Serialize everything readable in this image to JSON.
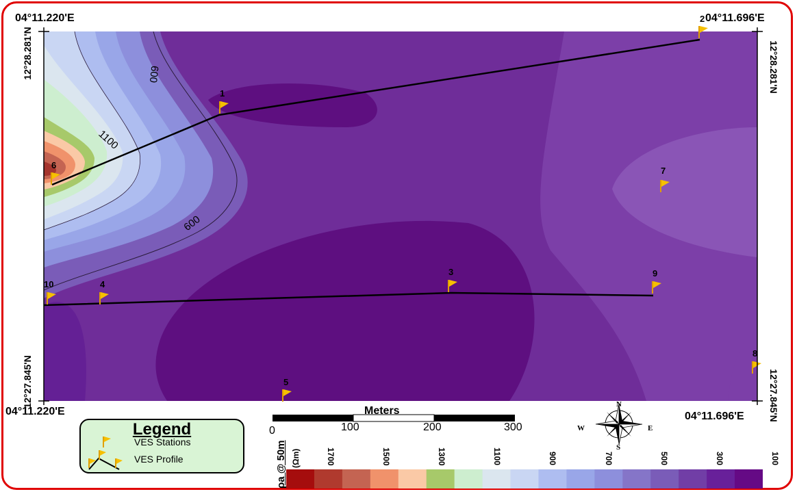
{
  "coords": {
    "top_left": "04°11.220'E",
    "top_right": "04°11.696'E",
    "bottom_left": "04°11.220'E",
    "bottom_right": "04°11.696'E",
    "left_top": "12°28.281'N",
    "left_bottom": "12°27.845'N",
    "right_top": "12°28.281'N",
    "right_bottom": "12°27.845'N"
  },
  "stations": [
    {
      "label": "1"
    },
    {
      "label": "2"
    },
    {
      "label": "3"
    },
    {
      "label": "4"
    },
    {
      "label": "5"
    },
    {
      "label": "6"
    },
    {
      "label": "7"
    },
    {
      "label": "8"
    },
    {
      "label": "9"
    },
    {
      "label": "10"
    }
  ],
  "contour_labels": [
    "600",
    "1100",
    "600"
  ],
  "legend": {
    "title": "Legend",
    "items": [
      "VES Stations",
      "VES Profile"
    ]
  },
  "scale": {
    "title": "Meters",
    "ticks": [
      "0",
      "100",
      "200",
      "300"
    ]
  },
  "north_arrow": {
    "n": "N",
    "s": "S",
    "e": "E",
    "w": "W"
  },
  "colorbar": {
    "rho_label": "ρa @ 50m",
    "unit": "(Ωm)",
    "labels": [
      "1700",
      "1500",
      "1300",
      "1100",
      "900",
      "700",
      "500",
      "300",
      "100"
    ],
    "colors": [
      "#a50d0d",
      "#b03a2e",
      "#c46452",
      "#f0926b",
      "#fac9a6",
      "#a7c96a",
      "#cdeecf",
      "#dbe6ef",
      "#c9d6f3",
      "#aebdf0",
      "#99a6e8",
      "#8d8fdc",
      "#8575c8",
      "#7a5cb8",
      "#713ea6",
      "#68209a",
      "#650a85"
    ]
  }
}
